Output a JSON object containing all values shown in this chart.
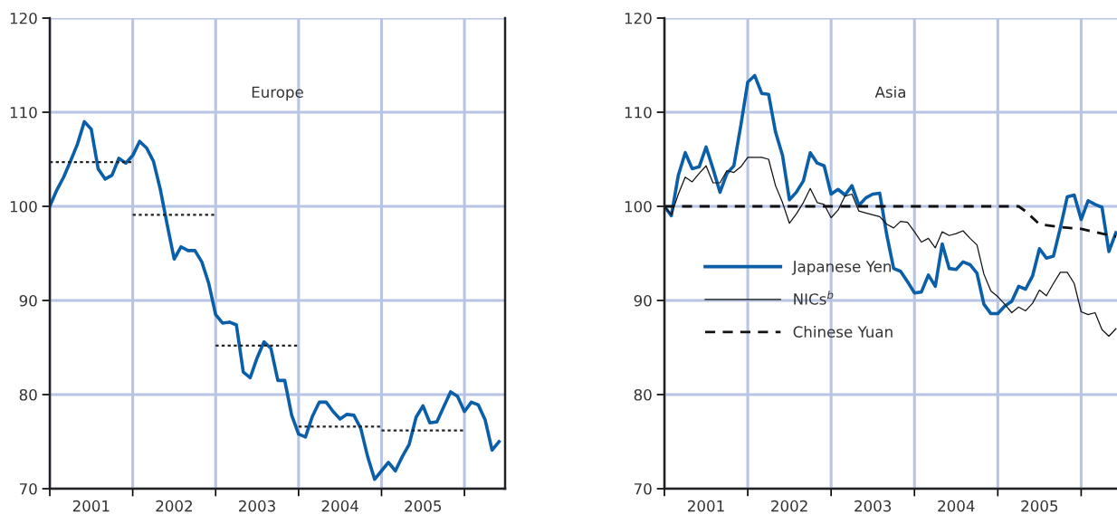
{
  "chart_data": [
    {
      "type": "line",
      "title": "Europe",
      "x": [
        2001,
        2001.083,
        2001.167,
        2001.25,
        2001.333,
        2001.417,
        2001.5,
        2001.583,
        2001.667,
        2001.75,
        2001.833,
        2001.917,
        2002,
        2002.083,
        2002.167,
        2002.25,
        2002.333,
        2002.417,
        2002.5,
        2002.583,
        2002.667,
        2002.75,
        2002.833,
        2002.917,
        2003,
        2003.083,
        2003.167,
        2003.25,
        2003.333,
        2003.417,
        2003.5,
        2003.583,
        2003.667,
        2003.75,
        2003.833,
        2003.917,
        2004,
        2004.083,
        2004.167,
        2004.25,
        2004.333,
        2004.417,
        2004.5,
        2004.583,
        2004.667,
        2004.75,
        2004.833,
        2004.917,
        2005,
        2005.083,
        2005.167,
        2005.25,
        2005.333,
        2005.417,
        2005.5,
        2005.583,
        2005.667,
        2005.75,
        2005.833,
        2005.917,
        2006,
        2006.083,
        2006.167,
        2006.25,
        2006.333,
        2006.417
      ],
      "series": [
        {
          "color": "#0a5fa8",
          "line_style": "solid",
          "values": [
            100.0,
            101.7,
            103.1,
            104.8,
            106.6,
            109.0,
            108.2,
            104.0,
            102.9,
            103.3,
            105.1,
            104.6,
            105.4,
            106.9,
            106.2,
            104.8,
            101.8,
            98.0,
            94.4,
            95.7,
            95.3,
            95.3,
            94.1,
            91.8,
            88.5,
            87.6,
            87.7,
            87.4,
            82.4,
            81.8,
            83.9,
            85.6,
            84.9,
            81.5,
            81.5,
            77.8,
            75.8,
            75.5,
            77.7,
            79.2,
            79.2,
            78.2,
            77.4,
            77.9,
            77.8,
            76.4,
            73.4,
            71.0,
            71.9,
            72.8,
            71.9,
            73.4,
            74.7,
            77.6,
            78.8,
            77.0,
            77.1,
            78.7,
            80.3,
            79.8,
            78.2,
            79.2,
            78.9,
            77.3,
            74.1,
            75.0
          ]
        },
        {
          "type": "line",
          "color": "#222222",
          "line_style": "dotted",
          "x": [
            2001,
            2002
          ],
          "values": [
            104.7,
            104.7
          ]
        },
        {
          "type": "line",
          "color": "#222222",
          "line_style": "dotted",
          "x": [
            2002,
            2003
          ],
          "values": [
            99.1,
            99.1
          ]
        },
        {
          "type": "line",
          "color": "#222222",
          "line_style": "dotted",
          "x": [
            2003,
            2004
          ],
          "values": [
            85.2,
            85.2
          ]
        },
        {
          "type": "line",
          "color": "#222222",
          "line_style": "dotted",
          "x": [
            2004,
            2005
          ],
          "values": [
            76.6,
            76.6
          ]
        },
        {
          "type": "line",
          "color": "#222222",
          "line_style": "dotted",
          "x": [
            2005,
            2006
          ],
          "values": [
            76.2,
            76.2
          ]
        }
      ],
      "xlim": [
        2001,
        2006.49
      ],
      "ylim": [
        70,
        120
      ],
      "xticks": [
        {
          "value": 2001,
          "label": null
        },
        {
          "value": 2002,
          "label": null
        },
        {
          "value": 2003,
          "label": null
        },
        {
          "value": 2004,
          "label": null
        },
        {
          "value": 2005,
          "label": null
        },
        {
          "value": 2006,
          "label": null
        },
        {
          "value": 2001.5,
          "label": "2001"
        },
        {
          "value": 2002.5,
          "label": "2002"
        },
        {
          "value": 2003.5,
          "label": "2003"
        },
        {
          "value": 2004.5,
          "label": "2004"
        },
        {
          "value": 2005.5,
          "label": "2005"
        }
      ],
      "yticks": [
        70,
        80,
        90,
        100,
        110,
        120
      ],
      "grid": true,
      "legend": false
    },
    {
      "type": "line",
      "title": "Asia",
      "x": [
        2001,
        2001.083,
        2001.167,
        2001.25,
        2001.333,
        2001.417,
        2001.5,
        2001.583,
        2001.667,
        2001.75,
        2001.833,
        2001.917,
        2002,
        2002.083,
        2002.167,
        2002.25,
        2002.333,
        2002.417,
        2002.5,
        2002.583,
        2002.667,
        2002.75,
        2002.833,
        2002.917,
        2003,
        2003.083,
        2003.167,
        2003.25,
        2003.333,
        2003.417,
        2003.5,
        2003.583,
        2003.667,
        2003.75,
        2003.833,
        2003.917,
        2004,
        2004.083,
        2004.167,
        2004.25,
        2004.333,
        2004.417,
        2004.5,
        2004.583,
        2004.667,
        2004.75,
        2004.833,
        2004.917,
        2005,
        2005.083,
        2005.167,
        2005.25,
        2005.333,
        2005.417,
        2005.5,
        2005.583,
        2005.667,
        2005.75,
        2005.833,
        2005.917,
        2006,
        2006.083,
        2006.167,
        2006.25,
        2006.333,
        2006.417
      ],
      "series": [
        {
          "name": "Japanese Yen",
          "color": "#0a5fa8",
          "line_style": "solid",
          "values": [
            100.0,
            99.0,
            103.3,
            105.7,
            104.0,
            104.2,
            106.3,
            104.0,
            101.5,
            103.5,
            104.3,
            108.6,
            113.2,
            113.9,
            112.0,
            111.9,
            107.9,
            105.4,
            100.7,
            101.5,
            102.7,
            105.7,
            104.6,
            104.3,
            101.3,
            101.8,
            101.2,
            102.2,
            100.1,
            100.9,
            101.3,
            101.4,
            97.0,
            93.4,
            93.1,
            92.0,
            90.8,
            90.9,
            92.7,
            91.5,
            96.0,
            93.4,
            93.3,
            94.1,
            93.8,
            92.9,
            89.6,
            88.6,
            88.6,
            89.4,
            89.9,
            91.5,
            91.2,
            92.6,
            95.5,
            94.5,
            94.7,
            97.7,
            101.0,
            101.2,
            98.6,
            100.6,
            100.2,
            99.9,
            95.2,
            97.2
          ]
        },
        {
          "name": "NICs$^{b}$",
          "color": "#111111",
          "line_style": "solid",
          "values": [
            100.0,
            99.1,
            101.3,
            103.1,
            102.6,
            103.5,
            104.3,
            102.5,
            102.5,
            103.8,
            103.6,
            104.2,
            105.2,
            105.2,
            105.2,
            105.0,
            102.2,
            100.4,
            98.2,
            99.2,
            100.4,
            101.9,
            100.4,
            100.2,
            98.8,
            99.6,
            101.1,
            101.3,
            99.5,
            99.3,
            99.1,
            98.9,
            98.1,
            97.7,
            98.4,
            98.3,
            97.3,
            96.2,
            96.6,
            95.6,
            97.3,
            96.9,
            97.1,
            97.4,
            96.6,
            95.9,
            92.8,
            91.0,
            90.4,
            89.6,
            88.7,
            89.3,
            88.9,
            89.7,
            91.1,
            90.5,
            91.8,
            93.0,
            93.0,
            91.8,
            88.8,
            88.5,
            88.7,
            86.9,
            86.2,
            87.0
          ]
        },
        {
          "name": "Chinese Yuan",
          "color": "#111111",
          "line_style": "dashed",
          "x": [
            2001,
            2005.25,
            2005.33,
            2005.5,
            2005.75,
            2006,
            2006.25,
            2006.42
          ],
          "values": [
            100,
            100,
            99.5,
            98.1,
            97.8,
            97.6,
            97.1,
            96.8
          ]
        }
      ],
      "xlim": [
        2001,
        2006.43
      ],
      "ylim": [
        70,
        120
      ],
      "xticks": [
        {
          "value": 2001,
          "label": null
        },
        {
          "value": 2002,
          "label": null
        },
        {
          "value": 2003,
          "label": null
        },
        {
          "value": 2004,
          "label": null
        },
        {
          "value": 2005,
          "label": null
        },
        {
          "value": 2006,
          "label": null
        },
        {
          "value": 2001.5,
          "label": "2001"
        },
        {
          "value": 2002.5,
          "label": "2002"
        },
        {
          "value": 2003.5,
          "label": "2003"
        },
        {
          "value": 2004.5,
          "label": "2004"
        },
        {
          "value": 2005.5,
          "label": "2005"
        }
      ],
      "yticks": [
        70,
        80,
        90,
        100,
        110,
        120
      ],
      "grid": true,
      "legend": "center left"
    }
  ]
}
